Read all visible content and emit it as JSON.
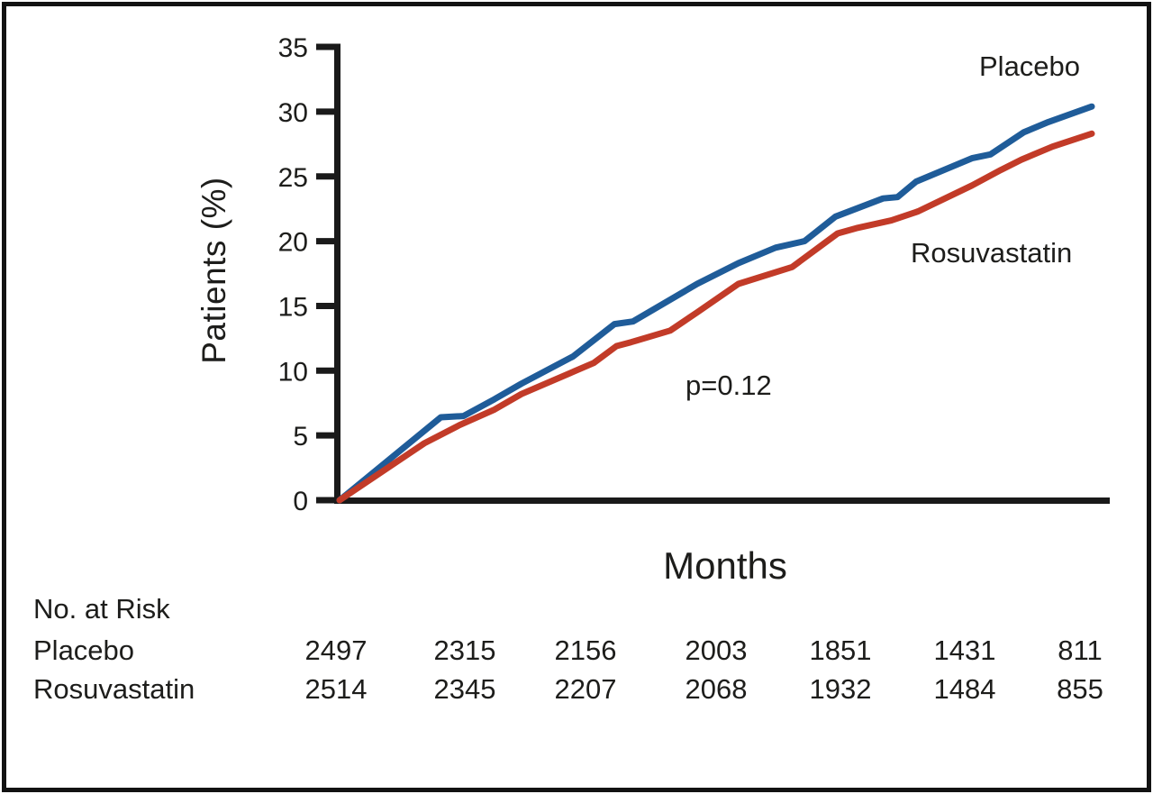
{
  "figure": {
    "frame_color": "#121212",
    "background": "#ffffff",
    "text_color": "#1d1d1b"
  },
  "chart_data": {
    "type": "line",
    "title": "",
    "xlabel": "Months",
    "ylabel": "Patients (%)",
    "annotation": "p=0.12",
    "ylim": [
      0,
      35
    ],
    "yticks": [
      0,
      5,
      10,
      15,
      20,
      25,
      30,
      35
    ],
    "xlim": [
      0,
      37.3
    ],
    "x_unit": "months",
    "grid": false,
    "legend_position": "labels-on-plot",
    "axis_color": "#1a1a1a",
    "series": [
      {
        "name": "Placebo",
        "color": "#1f5c99",
        "points": [
          [
            0,
            0
          ],
          [
            4.9,
            6.4
          ],
          [
            6.0,
            6.5
          ],
          [
            7.5,
            7.8
          ],
          [
            8.8,
            9.0
          ],
          [
            11.3,
            11.1
          ],
          [
            13.3,
            13.6
          ],
          [
            14.2,
            13.8
          ],
          [
            17.3,
            16.7
          ],
          [
            19.3,
            18.3
          ],
          [
            21.1,
            19.5
          ],
          [
            22.5,
            20.0
          ],
          [
            24.0,
            21.9
          ],
          [
            26.3,
            23.3
          ],
          [
            27.0,
            23.4
          ],
          [
            27.9,
            24.6
          ],
          [
            30.6,
            26.4
          ],
          [
            31.5,
            26.7
          ],
          [
            33.1,
            28.4
          ],
          [
            34.3,
            29.2
          ],
          [
            36.4,
            30.4
          ]
        ]
      },
      {
        "name": "Rosuvastatin",
        "color": "#c23b28",
        "points": [
          [
            0,
            0
          ],
          [
            4.1,
            4.4
          ],
          [
            5.8,
            5.8
          ],
          [
            7.5,
            7.0
          ],
          [
            8.8,
            8.2
          ],
          [
            12.3,
            10.6
          ],
          [
            13.4,
            11.9
          ],
          [
            14.1,
            12.2
          ],
          [
            16.0,
            13.1
          ],
          [
            17.3,
            14.5
          ],
          [
            19.3,
            16.7
          ],
          [
            21.9,
            18.0
          ],
          [
            24.1,
            20.6
          ],
          [
            25.0,
            21.0
          ],
          [
            26.7,
            21.6
          ],
          [
            28.0,
            22.3
          ],
          [
            30.6,
            24.3
          ],
          [
            32.0,
            25.5
          ],
          [
            33.0,
            26.3
          ],
          [
            34.5,
            27.3
          ],
          [
            36.4,
            28.3
          ]
        ]
      }
    ],
    "risk_table": {
      "header": "No. at Risk",
      "rows": [
        {
          "label": "Placebo",
          "values": [
            "2497",
            "2315",
            "2156",
            "2003",
            "1851",
            "1431",
            "811"
          ]
        },
        {
          "label": "Rosuvastatin",
          "values": [
            "2514",
            "2345",
            "2207",
            "2068",
            "1932",
            "1484",
            "855"
          ]
        }
      ]
    }
  }
}
